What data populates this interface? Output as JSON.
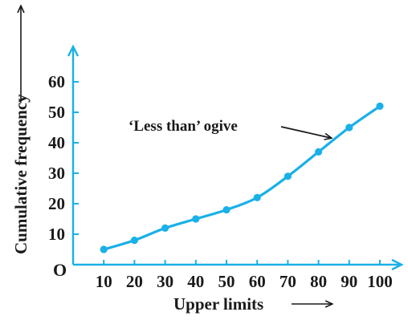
{
  "chart_data": {
    "type": "line",
    "xlabel": "Upper limits",
    "ylabel": "Cumulative frequency",
    "origin_label": "O",
    "x": [
      10,
      20,
      30,
      40,
      50,
      60,
      70,
      80,
      90,
      100
    ],
    "series": [
      {
        "name": "‘Less than’ ogive",
        "values": [
          5,
          8,
          12,
          15,
          18,
          22,
          29,
          37,
          45,
          52
        ]
      }
    ],
    "xticks": [
      "10",
      "20",
      "30",
      "40",
      "50",
      "60",
      "70",
      "80",
      "90",
      "100"
    ],
    "yticks": [
      "10",
      "20",
      "30",
      "40",
      "50",
      "60"
    ],
    "ytick_values": [
      10,
      20,
      30,
      40,
      50,
      60
    ],
    "xlim": [
      0,
      100
    ],
    "ylim": [
      0,
      60
    ],
    "grid": false,
    "annotation": "‘Less than’ ogive",
    "line_color": "#1ab0e8",
    "axis_color": "#1ab0e8",
    "text_color": "#1a1a1a"
  }
}
